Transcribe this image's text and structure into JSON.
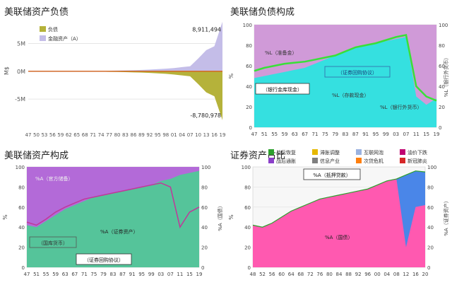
{
  "panels": {
    "p1": {
      "title": "美联储资产负债"
    },
    "p2": {
      "title": "美联储负债构成"
    },
    "p3": {
      "title": "美联储资产构成"
    },
    "p4": {
      "title": "证券资产占比"
    }
  },
  "chart_data": [
    {
      "type": "area",
      "title": "美联储资产负债",
      "ylabel": "M$",
      "yticks": [
        "5M",
        "0M",
        "-5M"
      ],
      "ylim": [
        -8800000,
        9000000
      ],
      "categories": [
        "47",
        "50",
        "53",
        "56",
        "59",
        "62",
        "65",
        "68",
        "71",
        "74",
        "77",
        "80",
        "83",
        "86",
        "89",
        "92",
        "95",
        "98",
        "01",
        "04",
        "07",
        "10",
        "13",
        "16",
        "19"
      ],
      "legend": [
        "负债",
        "金融资产（A）"
      ],
      "annotations": [
        "8,911,494",
        "-8,780,978"
      ],
      "series": [
        {
          "name": "负债",
          "color": "#b5b23a",
          "values": [
            -20000,
            -22000,
            -25000,
            -28000,
            -30000,
            -35000,
            -40000,
            -50000,
            -60000,
            -80000,
            -100000,
            -130000,
            -160000,
            -200000,
            -240000,
            -300000,
            -380000,
            -460000,
            -580000,
            -750000,
            -900000,
            -2300000,
            -3800000,
            -4500000,
            -8780978
          ]
        },
        {
          "name": "金融资产（A）",
          "color": "#c4bde8",
          "values": [
            20000,
            22000,
            25000,
            28000,
            30000,
            35000,
            40000,
            50000,
            60000,
            80000,
            100000,
            130000,
            160000,
            200000,
            240000,
            300000,
            380000,
            460000,
            580000,
            750000,
            900000,
            2300000,
            3800000,
            4500000,
            8911494
          ]
        }
      ]
    },
    {
      "type": "area",
      "title": "美联储负债构成",
      "ylabel": "%",
      "y2label": "%L（银行外货币）",
      "yticks": [
        "100",
        "80",
        "60",
        "40",
        "20",
        "0"
      ],
      "ylim": [
        0,
        100
      ],
      "categories": [
        "47",
        "51",
        "55",
        "59",
        "63",
        "67",
        "71",
        "75",
        "79",
        "83",
        "87",
        "91",
        "95",
        "99",
        "03",
        "07",
        "11",
        "15",
        "19"
      ],
      "labels": [
        "%L（准备金）",
        "（证券回购协议）",
        "（银行金库现金）",
        "%L（存款现金）",
        "%L（银行外货币）"
      ],
      "series": [
        {
          "name": "%L（存款现金）",
          "color": "#35e0e0",
          "values": [
            48,
            50,
            52,
            54,
            56,
            58,
            62,
            66,
            70,
            74,
            78,
            80,
            82,
            84,
            86,
            88,
            30,
            22,
            28
          ]
        },
        {
          "name": "%L（准备金）",
          "color": "#d09ad8",
          "values": [
            100,
            100,
            100,
            100,
            100,
            100,
            100,
            100,
            100,
            100,
            100,
            100,
            100,
            100,
            100,
            100,
            100,
            100,
            100
          ]
        },
        {
          "name": "%L（银行外货币）",
          "color": "#38e038",
          "values": [
            55,
            58,
            60,
            62,
            63,
            64,
            66,
            68,
            70,
            74,
            78,
            80,
            82,
            85,
            88,
            90,
            40,
            30,
            26
          ]
        }
      ]
    },
    {
      "type": "area",
      "title": "美联储资产构成",
      "ylabel": "%",
      "y2label": "%A（国债）",
      "yticks": [
        "100",
        "80",
        "60",
        "40",
        "20",
        "0"
      ],
      "ylim": [
        0,
        100
      ],
      "categories": [
        "47",
        "51",
        "55",
        "59",
        "63",
        "67",
        "71",
        "75",
        "79",
        "83",
        "87",
        "91",
        "95",
        "99",
        "03",
        "07",
        "11",
        "15",
        "19"
      ],
      "labels": [
        "%A（官方储备）",
        "%A（证券资产）",
        "（国库货币）",
        "（证券回购协议）"
      ],
      "series": [
        {
          "name": "%A（证券资产）",
          "color": "#55c49a",
          "values": [
            42,
            40,
            46,
            52,
            58,
            62,
            66,
            70,
            72,
            74,
            76,
            78,
            80,
            82,
            86,
            88,
            92,
            94,
            96
          ]
        },
        {
          "name": "%A（官方储备）",
          "color": "#b36ad8",
          "values": [
            100,
            100,
            100,
            100,
            100,
            100,
            100,
            100,
            100,
            100,
            100,
            100,
            100,
            100,
            100,
            100,
            100,
            100,
            100
          ]
        },
        {
          "name": "%A（国债）",
          "color": "#c0389a",
          "values": [
            45,
            42,
            48,
            55,
            60,
            64,
            68,
            70,
            72,
            74,
            76,
            78,
            80,
            82,
            84,
            80,
            40,
            55,
            60
          ]
        }
      ]
    },
    {
      "type": "area",
      "title": "证券资产占比",
      "ylabel": "%",
      "y2label": "%A（证券资产）",
      "yticks": [
        "100",
        "80",
        "60",
        "40",
        "20",
        "0"
      ],
      "ylim": [
        0,
        100
      ],
      "categories": [
        "48",
        "52",
        "56",
        "60",
        "64",
        "68",
        "72",
        "76",
        "80",
        "84",
        "88",
        "92",
        "96",
        "00",
        "04",
        "08",
        "12",
        "16",
        "20"
      ],
      "legend": [
        "战后恢复",
        "滞胀调整",
        "互联网泡",
        "油价下跌",
        "战后通胀",
        "信息产业",
        "次贷危机",
        "新冠肺炎"
      ],
      "legend_colors": [
        "#2ca02c",
        "#e6b800",
        "#9ab2e0",
        "#c00070",
        "#8b3fc9",
        "#7f7f7f",
        "#ff7f0e",
        "#d62728"
      ],
      "labels": [
        "%A（国债）",
        "%A（抵押贷款）"
      ],
      "series": [
        {
          "name": "%A（国债）",
          "color": "#ff59b0",
          "values": [
            42,
            40,
            44,
            50,
            56,
            60,
            64,
            68,
            70,
            72,
            74,
            76,
            78,
            82,
            86,
            88,
            20,
            60,
            62
          ]
        },
        {
          "name": "%A（抵押贷款）",
          "color": "#4a86e8",
          "values": [
            42,
            40,
            44,
            50,
            56,
            60,
            64,
            68,
            70,
            72,
            74,
            76,
            78,
            82,
            86,
            88,
            92,
            96,
            95
          ]
        }
      ]
    }
  ]
}
